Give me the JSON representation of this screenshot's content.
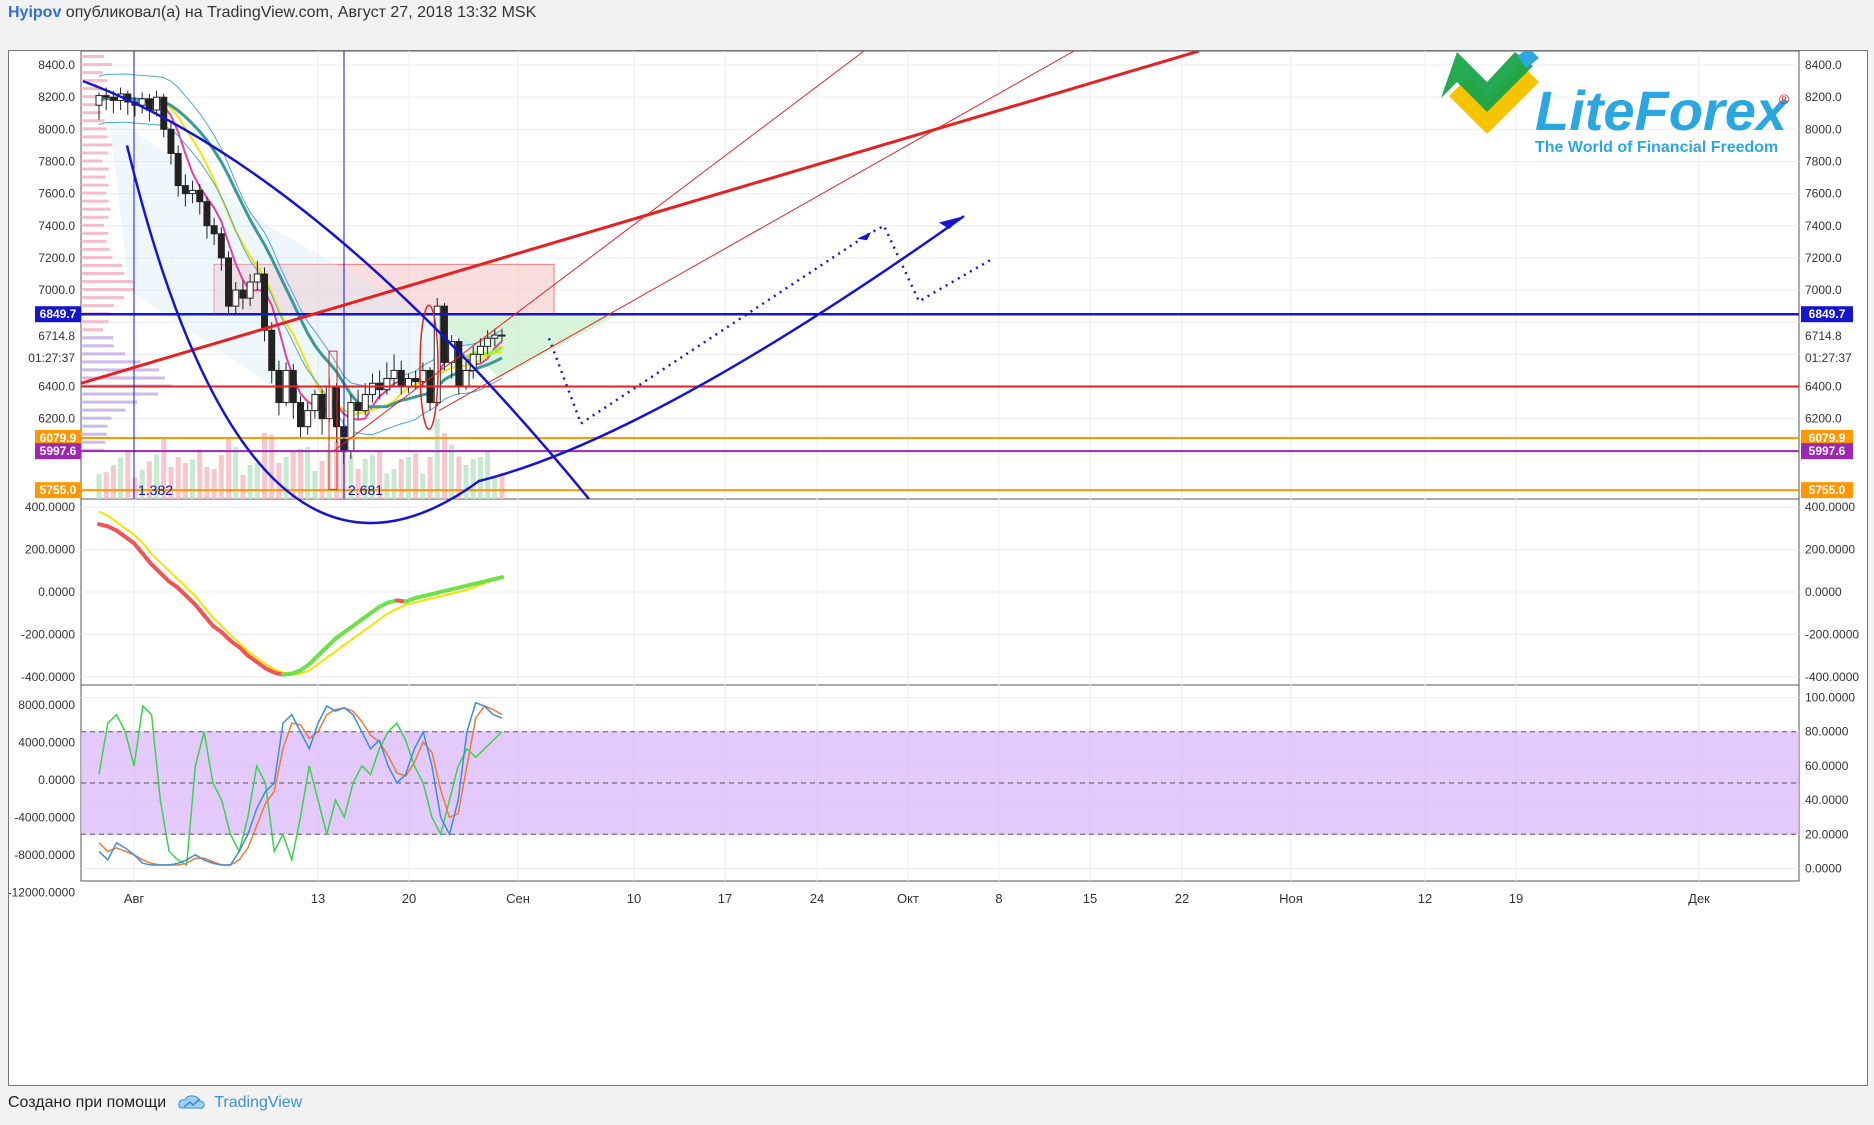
{
  "header": {
    "user": "Hyipov",
    "rest": " опубликовал(а) на TradingView.com, Август 27, 2018 13:32 MSK"
  },
  "footer": {
    "created_with": "Создано при помощи",
    "brand": "TradingView"
  },
  "logo": {
    "name": "LiteForex",
    "registered": "®",
    "tagline": "The World of Financial Freedom"
  },
  "colors": {
    "blue_line": "#1515d0",
    "red_line": "#e52222",
    "orange": "#ff9800",
    "purple": "#9c27b0",
    "cci_down": "#f05454",
    "cci_up": "#6de04a",
    "stoch_k": "#3a8fd9",
    "stoch_d": "#f07a36",
    "stoch_rsi": "#3ad34a",
    "band_fill": "#d9b3fb"
  },
  "chart_data": [
    {
      "type": "candlestick",
      "pane": "price",
      "yticks": [
        6000.0,
        6200.0,
        6400.0,
        6600.0,
        6800.0,
        7000.0,
        7200.0,
        7400.0,
        7600.0,
        7800.0,
        8000.0,
        8200.0,
        8400.0
      ],
      "ytick_labels": [
        "6200.0",
        "6400.0",
        "7000.0",
        "7200.0",
        "7400.0",
        "7600.0",
        "7800.0",
        "8000.0",
        "8200.0",
        "8400.0"
      ],
      "ylim": [
        5700,
        8450
      ],
      "xtick_labels": [
        "Авг",
        "13",
        "20",
        "Сен",
        "10",
        "17",
        "24",
        "Окт",
        "8",
        "15",
        "22",
        "Ноя",
        "12",
        "19",
        "Дек"
      ],
      "price_labels": [
        {
          "value": 6849.7,
          "label": "6849.7",
          "color": "#1515d0"
        },
        {
          "value": 6079.9,
          "label": "6079.9",
          "color": "#ff9800"
        },
        {
          "value": 5997.6,
          "label": "5997.6",
          "color": "#9c27b0"
        },
        {
          "value": 5755.0,
          "label": "5755.0",
          "color": "#ff9800"
        }
      ],
      "last_price": "6714.8",
      "countdown": "01:27:37",
      "fib_labels": [
        "1.382",
        "2.681"
      ],
      "horizontal_levels": [
        {
          "value": 6849.7,
          "color": "#1515d0"
        },
        {
          "value": 6400.0,
          "color": "#e52222"
        },
        {
          "value": 6079.9,
          "color": "#ff9800"
        },
        {
          "value": 5997.6,
          "color": "#9c27b0"
        },
        {
          "value": 5755.0,
          "color": "#ff9800"
        }
      ],
      "candles": [
        [
          8150,
          8210,
          8060,
          8230
        ],
        [
          8210,
          8200,
          8120,
          8260
        ],
        [
          8200,
          8180,
          8100,
          8240
        ],
        [
          8180,
          8220,
          8120,
          8260
        ],
        [
          8220,
          8170,
          8090,
          8240
        ],
        [
          8170,
          8150,
          8080,
          8200
        ],
        [
          8150,
          8190,
          8100,
          8230
        ],
        [
          8190,
          8120,
          8050,
          8220
        ],
        [
          8120,
          8200,
          8080,
          8240
        ],
        [
          8200,
          8000,
          7950,
          8220
        ],
        [
          8000,
          7850,
          7780,
          8040
        ],
        [
          7850,
          7650,
          7580,
          7900
        ],
        [
          7650,
          7600,
          7520,
          7720
        ],
        [
          7600,
          7620,
          7540,
          7680
        ],
        [
          7620,
          7550,
          7470,
          7660
        ],
        [
          7550,
          7400,
          7320,
          7580
        ],
        [
          7400,
          7350,
          7280,
          7450
        ],
        [
          7350,
          7200,
          7120,
          7390
        ],
        [
          7200,
          6900,
          6850,
          7240
        ],
        [
          6900,
          7000,
          6850,
          7050
        ],
        [
          7000,
          6950,
          6880,
          7060
        ],
        [
          6950,
          7050,
          6900,
          7100
        ],
        [
          7050,
          7100,
          7000,
          7180
        ],
        [
          7100,
          6750,
          6680,
          7140
        ],
        [
          6750,
          6500,
          6420,
          6800
        ],
        [
          6500,
          6300,
          6220,
          6560
        ],
        [
          6300,
          6500,
          6280,
          6550
        ],
        [
          6500,
          6300,
          6200,
          6540
        ],
        [
          6300,
          6150,
          6080,
          6340
        ],
        [
          6150,
          6250,
          6100,
          6300
        ],
        [
          6250,
          6350,
          6200,
          6380
        ],
        [
          6350,
          6200,
          6100,
          6380
        ],
        [
          6200,
          6400,
          6180,
          6450
        ],
        [
          6400,
          6150,
          6050,
          6420
        ],
        [
          6150,
          6000,
          5920,
          6200
        ],
        [
          6000,
          6300,
          5950,
          6350
        ],
        [
          6300,
          6250,
          6200,
          6380
        ],
        [
          6250,
          6350,
          6220,
          6420
        ],
        [
          6350,
          6420,
          6300,
          6480
        ],
        [
          6420,
          6380,
          6320,
          6500
        ],
        [
          6380,
          6450,
          6350,
          6550
        ],
        [
          6450,
          6500,
          6400,
          6600
        ],
        [
          6500,
          6400,
          6350,
          6560
        ],
        [
          6400,
          6450,
          6360,
          6480
        ],
        [
          6450,
          6430,
          6380,
          6500
        ],
        [
          6430,
          6500,
          6400,
          6550
        ],
        [
          6500,
          6300,
          6250,
          6520
        ],
        [
          6300,
          6900,
          6280,
          6950
        ],
        [
          6900,
          6550,
          6500,
          6920
        ],
        [
          6550,
          6680,
          6450,
          6720
        ],
        [
          6680,
          6400,
          6350,
          6700
        ],
        [
          6400,
          6500,
          6380,
          6560
        ],
        [
          6500,
          6600,
          6450,
          6650
        ],
        [
          6600,
          6650,
          6550,
          6700
        ],
        [
          6650,
          6700,
          6600,
          6750
        ],
        [
          6700,
          6720,
          6650,
          6760
        ],
        [
          6720,
          6714,
          6680,
          6760
        ]
      ],
      "projections": [
        "dotted blue zigzag toward ~7400",
        "blue arc toward ~7450"
      ]
    },
    {
      "type": "line",
      "pane": "cci",
      "ytick_labels": [
        "400.0000",
        "200.0000",
        "0.0000",
        "-200.0000",
        "-400.0000"
      ],
      "ylim": [
        -420,
        420
      ],
      "series": [
        {
          "values": [
            320,
            310,
            290,
            260,
            230,
            180,
            130,
            90,
            50,
            20,
            -20,
            -60,
            -110,
            -160,
            -190,
            -230,
            -260,
            -300,
            -330,
            -360,
            -380,
            -390,
            -385,
            -370,
            -340,
            -300,
            -260,
            -220,
            -190,
            -160,
            -130,
            -100,
            -70,
            -50,
            -40,
            -45,
            -30,
            -20,
            -10,
            0,
            10,
            20,
            30,
            40,
            50,
            60,
            70
          ]
        },
        {
          "values": [
            380,
            360,
            330,
            300,
            270,
            230,
            180,
            140,
            100,
            60,
            20,
            -20,
            -70,
            -120,
            -160,
            -200,
            -240,
            -280,
            -310,
            -340,
            -365,
            -380,
            -390,
            -385,
            -370,
            -340,
            -310,
            -280,
            -250,
            -220,
            -190,
            -160,
            -130,
            -100,
            -80,
            -60,
            -50,
            -40,
            -30,
            -20,
            -10,
            0,
            10,
            25,
            40,
            55,
            65
          ]
        }
      ]
    },
    {
      "type": "line",
      "pane": "stoch",
      "ytick_labels_left": [
        "8000.0000",
        "4000.0000",
        "0.0000",
        "-4000.0000",
        "-8000.0000",
        "-12000.0000"
      ],
      "ytick_labels_right": [
        "100.0000",
        "80.0000",
        "60.0000",
        "40.0000",
        "20.0000",
        "0.0000"
      ],
      "ylim": [
        -5,
        105
      ],
      "band": [
        20,
        80
      ],
      "series": [
        {
          "values": [
            10,
            5,
            15,
            12,
            8,
            3,
            2,
            2,
            2,
            3,
            5,
            8,
            5,
            3,
            2,
            2,
            10,
            20,
            35,
            45,
            50,
            85,
            90,
            80,
            70,
            85,
            95,
            92,
            94,
            90,
            80,
            70,
            75,
            60,
            50,
            55,
            70,
            80,
            60,
            30,
            20,
            40,
            80,
            97,
            95,
            90,
            88
          ]
        },
        {
          "values": [
            15,
            10,
            12,
            10,
            8,
            5,
            3,
            2,
            2,
            2,
            3,
            6,
            6,
            4,
            2,
            2,
            5,
            12,
            25,
            38,
            45,
            70,
            85,
            84,
            76,
            80,
            90,
            93,
            94,
            92,
            86,
            78,
            74,
            66,
            56,
            54,
            62,
            74,
            68,
            46,
            30,
            32,
            60,
            88,
            95,
            93,
            90
          ]
        },
        {
          "values": [
            55,
            85,
            90,
            80,
            60,
            95,
            90,
            40,
            10,
            5,
            2,
            60,
            80,
            50,
            40,
            20,
            10,
            30,
            60,
            50,
            10,
            20,
            5,
            30,
            60,
            40,
            20,
            40,
            30,
            50,
            60,
            55,
            70,
            80,
            85,
            75,
            60,
            50,
            30,
            20,
            40,
            60,
            70,
            65,
            70,
            75,
            80
          ]
        }
      ]
    }
  ]
}
